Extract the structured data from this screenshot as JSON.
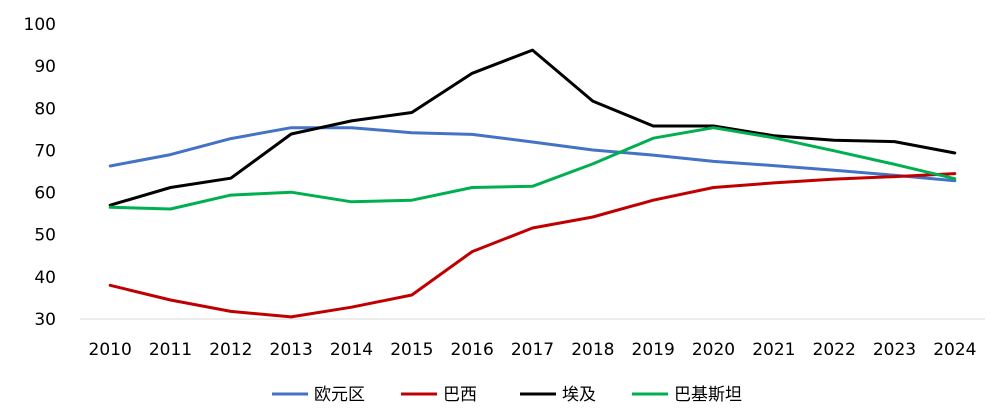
{
  "chart_data": {
    "type": "line",
    "x": [
      "2010",
      "2011",
      "2012",
      "2013",
      "2014",
      "2015",
      "2016",
      "2017",
      "2018",
      "2019",
      "2020",
      "2021",
      "2022",
      "2023",
      "2024"
    ],
    "ylim": [
      30,
      100
    ],
    "yticks": [
      30,
      40,
      50,
      60,
      70,
      80,
      90,
      100
    ],
    "grid": false,
    "legend_position": "bottom",
    "series": [
      {
        "name": "欧元区",
        "color": "#4472C4",
        "values": [
          66.3,
          69.0,
          72.8,
          75.4,
          75.4,
          74.2,
          73.8,
          72.0,
          70.1,
          68.9,
          67.4,
          66.4,
          65.3,
          64.1,
          62.8
        ]
      },
      {
        "name": "巴西",
        "color": "#C00000",
        "values": [
          38.0,
          34.5,
          31.8,
          30.5,
          32.8,
          35.7,
          46.0,
          51.6,
          54.2,
          58.2,
          61.2,
          62.3,
          63.2,
          63.8,
          64.5
        ]
      },
      {
        "name": "埃及",
        "color": "#000000",
        "values": [
          57.0,
          61.2,
          63.4,
          73.9,
          77.0,
          79.0,
          88.3,
          93.8,
          81.7,
          75.8,
          75.8,
          73.5,
          72.4,
          72.1,
          69.4
        ]
      },
      {
        "name": "巴基斯坦",
        "color": "#00B050",
        "values": [
          56.5,
          56.1,
          59.4,
          60.1,
          57.8,
          58.2,
          61.2,
          61.5,
          66.8,
          72.9,
          75.4,
          73.0,
          69.9,
          66.7,
          63.3
        ]
      }
    ]
  }
}
